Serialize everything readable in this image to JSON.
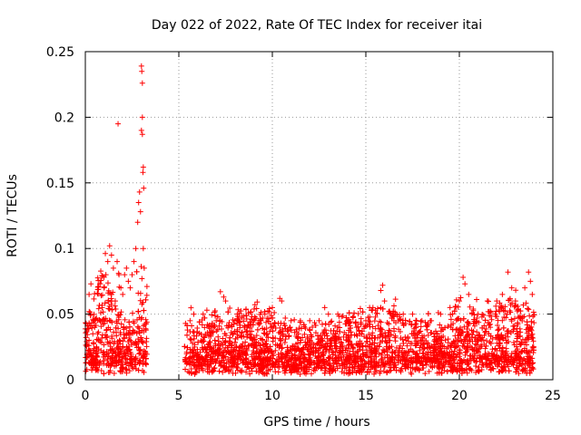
{
  "chart_data": {
    "type": "scatter",
    "title": "Day 022 of 2022, Rate Of TEC Index for receiver itai",
    "xlabel": "GPS time / hours",
    "ylabel": "ROTI / TECUs",
    "xlim": [
      0,
      25
    ],
    "ylim": [
      0,
      0.25
    ],
    "x_ticks": [
      0,
      5,
      10,
      15,
      20,
      25
    ],
    "y_ticks": [
      0,
      0.05,
      0.1,
      0.15,
      0.2,
      0.25
    ],
    "x_tick_labels": [
      "0",
      "5",
      "10",
      "15",
      "20",
      "25"
    ],
    "y_tick_labels": [
      "0",
      "0.05",
      "0.1",
      "0.15",
      "0.2",
      "0.25"
    ],
    "grid": true,
    "marker": "+",
    "color": "#ff0000",
    "data_gap_hours": [
      3.3,
      5.3
    ],
    "series": [
      {
        "points": [
          [
            0.1,
            0.02
          ],
          [
            0.2,
            0.03
          ],
          [
            0.2,
            0.065
          ],
          [
            0.3,
            0.073
          ],
          [
            0.4,
            0.035
          ],
          [
            0.5,
            0.04
          ],
          [
            0.6,
            0.025
          ],
          [
            0.7,
            0.03
          ],
          [
            0.8,
            0.045
          ],
          [
            0.9,
            0.055
          ],
          [
            1.0,
            0.07
          ],
          [
            1.1,
            0.08
          ],
          [
            1.2,
            0.09
          ],
          [
            1.3,
            0.102
          ],
          [
            1.4,
            0.095
          ],
          [
            1.5,
            0.085
          ],
          [
            1.6,
            0.06
          ],
          [
            1.7,
            0.09
          ],
          [
            1.75,
            0.195
          ],
          [
            1.8,
            0.08
          ],
          [
            1.9,
            0.07
          ],
          [
            2.0,
            0.065
          ],
          [
            2.1,
            0.08
          ],
          [
            2.2,
            0.085
          ],
          [
            2.3,
            0.075
          ],
          [
            2.4,
            0.07
          ],
          [
            2.5,
            0.08
          ],
          [
            2.6,
            0.09
          ],
          [
            2.7,
            0.1
          ],
          [
            2.8,
            0.12
          ],
          [
            2.85,
            0.135
          ],
          [
            2.9,
            0.143
          ],
          [
            2.95,
            0.128
          ],
          [
            3.0,
            0.239
          ],
          [
            3.02,
            0.235
          ],
          [
            3.05,
            0.226
          ],
          [
            3.05,
            0.2
          ],
          [
            3.0,
            0.19
          ],
          [
            3.05,
            0.187
          ],
          [
            3.1,
            0.162
          ],
          [
            3.08,
            0.158
          ],
          [
            3.12,
            0.146
          ],
          [
            3.1,
            0.1
          ],
          [
            3.15,
            0.085
          ],
          [
            5.6,
            0.045
          ],
          [
            5.8,
            0.05
          ],
          [
            6.3,
            0.05
          ],
          [
            6.5,
            0.053
          ],
          [
            7.0,
            0.045
          ],
          [
            7.4,
            0.063
          ],
          [
            7.5,
            0.06
          ],
          [
            8.0,
            0.045
          ],
          [
            8.5,
            0.04
          ],
          [
            9.0,
            0.045
          ],
          [
            9.4,
            0.045
          ],
          [
            9.6,
            0.05
          ],
          [
            10.0,
            0.055
          ],
          [
            10.4,
            0.062
          ],
          [
            10.5,
            0.06
          ],
          [
            11.0,
            0.045
          ],
          [
            11.5,
            0.045
          ],
          [
            12.0,
            0.045
          ],
          [
            12.5,
            0.045
          ],
          [
            12.8,
            0.055
          ],
          [
            13.0,
            0.05
          ],
          [
            13.5,
            0.05
          ],
          [
            14.0,
            0.045
          ],
          [
            14.5,
            0.04
          ],
          [
            15.0,
            0.045
          ],
          [
            15.2,
            0.055
          ],
          [
            15.8,
            0.068
          ],
          [
            15.9,
            0.072
          ],
          [
            16.0,
            0.06
          ],
          [
            16.5,
            0.045
          ],
          [
            17.0,
            0.05
          ],
          [
            17.5,
            0.05
          ],
          [
            18.0,
            0.045
          ],
          [
            18.5,
            0.045
          ],
          [
            19.0,
            0.05
          ],
          [
            19.5,
            0.055
          ],
          [
            20.0,
            0.06
          ],
          [
            20.2,
            0.078
          ],
          [
            20.3,
            0.073
          ],
          [
            20.5,
            0.065
          ],
          [
            21.0,
            0.05
          ],
          [
            21.5,
            0.06
          ],
          [
            22.0,
            0.06
          ],
          [
            22.3,
            0.065
          ],
          [
            22.6,
            0.082
          ],
          [
            22.8,
            0.07
          ],
          [
            23.0,
            0.06
          ],
          [
            23.5,
            0.07
          ],
          [
            23.7,
            0.082
          ],
          [
            23.8,
            0.075
          ],
          [
            23.9,
            0.065
          ]
        ]
      }
    ]
  }
}
